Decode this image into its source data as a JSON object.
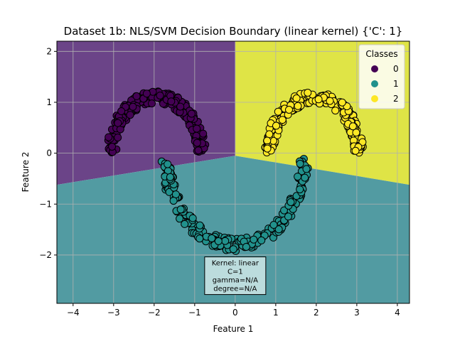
{
  "chart_data": {
    "type": "scatter",
    "title": "Dataset 1b: NLS/SVM Decision Boundary (linear kernel) {'C': 1}",
    "xlabel": "Feature 1",
    "ylabel": "Feature 2",
    "xlim": [
      -4.4,
      4.3
    ],
    "ylim": [
      -2.95,
      2.2
    ],
    "xticks": [
      -4,
      -3,
      -2,
      -1,
      0,
      1,
      2,
      3,
      4
    ],
    "yticks": [
      -2,
      -1,
      0,
      1,
      2
    ],
    "xtick_labels": [
      "−4",
      "−3",
      "−2",
      "−1",
      "0",
      "1",
      "2",
      "3",
      "4"
    ],
    "ytick_labels": [
      "−2",
      "−1",
      "0",
      "1",
      "2"
    ],
    "grid": true,
    "legend": {
      "title": "Classes",
      "placement": "top-right",
      "entries": [
        {
          "label": "0",
          "color": "#440154"
        },
        {
          "label": "1",
          "color": "#21918c"
        },
        {
          "label": "2",
          "color": "#fde725"
        }
      ]
    },
    "regions": [
      {
        "class": "0",
        "color": "#6b4488",
        "polygon": [
          [
            -4.4,
            2.2
          ],
          [
            0.0,
            2.2
          ],
          [
            0.0,
            -0.05
          ],
          [
            -4.4,
            -0.62
          ]
        ]
      },
      {
        "class": "2",
        "color": "#dfe446",
        "polygon": [
          [
            0.0,
            2.2
          ],
          [
            4.3,
            2.2
          ],
          [
            4.3,
            -0.62
          ],
          [
            0.0,
            -0.05
          ]
        ]
      },
      {
        "class": "1",
        "color": "#529ba2",
        "polygon": [
          [
            -4.4,
            -0.62
          ],
          [
            0.0,
            -0.05
          ],
          [
            4.3,
            -0.62
          ],
          [
            4.3,
            -2.95
          ],
          [
            -4.4,
            -2.95
          ]
        ]
      }
    ],
    "series": [
      {
        "name": "0",
        "shape": "upper-arc",
        "center": [
          -1.95,
          0.0
        ],
        "radius": 1.1,
        "thickness": 0.25,
        "n": 220
      },
      {
        "name": "1",
        "shape": "lower-arc",
        "center": [
          0.0,
          -0.1
        ],
        "radius": 1.7,
        "thickness": 0.25,
        "n": 220
      },
      {
        "name": "2",
        "shape": "upper-arc",
        "center": [
          1.95,
          0.0
        ],
        "radius": 1.1,
        "thickness": 0.25,
        "n": 220
      }
    ],
    "annotation": {
      "lines": [
        "Kernel: linear",
        "C=1",
        "gamma=N/A",
        "degree=N/A"
      ],
      "x": 0.0,
      "y": -2.4
    }
  }
}
